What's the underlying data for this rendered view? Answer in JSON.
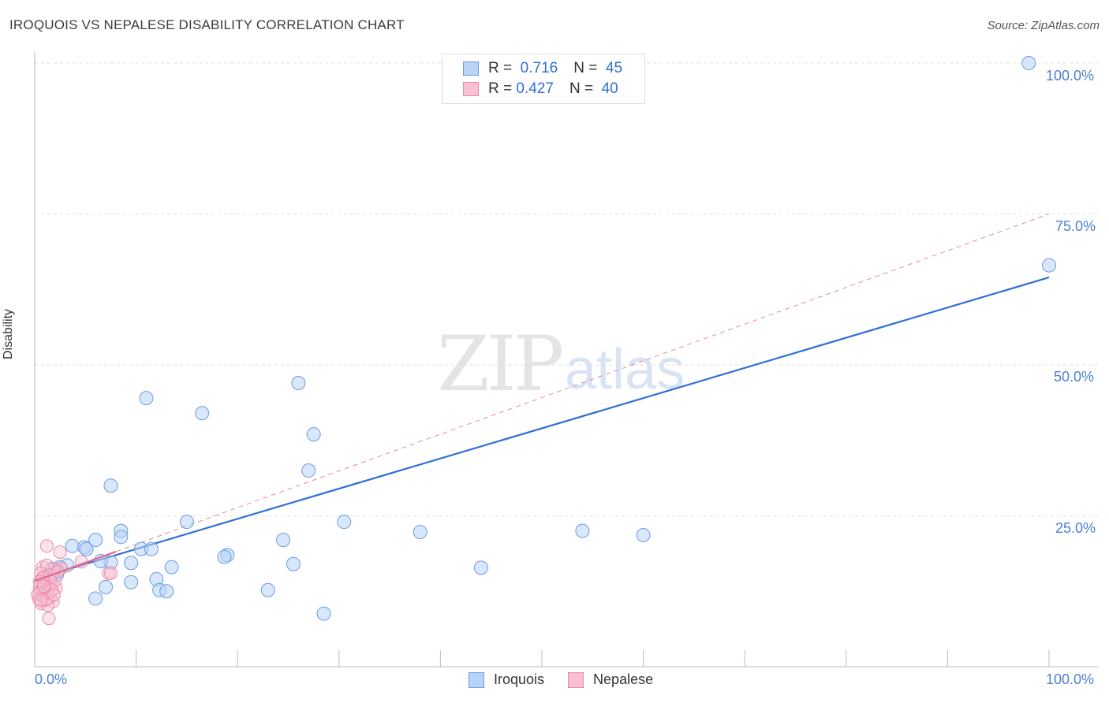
{
  "title": "IROQUOIS VS NEPALESE DISABILITY CORRELATION CHART",
  "source": "Source: ZipAtlas.com",
  "watermark": {
    "zip": "ZIP",
    "atlas": "atlas"
  },
  "colors": {
    "blue": "#2f6fd6",
    "blue_fill": "#b8d3f5",
    "pink": "#e8648e",
    "pink_fill": "#f7c1d2"
  },
  "legend": {
    "r_label": "R =",
    "n_label": "N =",
    "series": [
      {
        "name": "Iroquois",
        "r": "0.716",
        "n": "45"
      },
      {
        "name": "Nepalese",
        "r": "0.427",
        "n": "40"
      }
    ]
  },
  "chart_data": {
    "type": "scatter",
    "title": "IROQUOIS VS NEPALESE DISABILITY CORRELATION CHART",
    "xlabel": "",
    "ylabel": "Disability",
    "xlim": [
      0,
      100
    ],
    "ylim": [
      0,
      105
    ],
    "x_tick_labels": [
      "0.0%",
      "100.0%"
    ],
    "y_tick_labels": [
      "100.0%",
      "75.0%",
      "50.0%",
      "25.0%"
    ],
    "y_ticks": [
      100,
      75,
      50,
      25
    ],
    "grid": true,
    "series": [
      {
        "name": "Iroquois",
        "points": [
          [
            98,
            100
          ],
          [
            100,
            66.5
          ],
          [
            11,
            44.5
          ],
          [
            16.5,
            42
          ],
          [
            26,
            47
          ],
          [
            27.5,
            38.5
          ],
          [
            27,
            32.5
          ],
          [
            7.5,
            30
          ],
          [
            15,
            24
          ],
          [
            8.5,
            22.5
          ],
          [
            30.5,
            24
          ],
          [
            38,
            22.3
          ],
          [
            54,
            22.5
          ],
          [
            60,
            21.8
          ],
          [
            8.5,
            21.5
          ],
          [
            6,
            21
          ],
          [
            3.7,
            20
          ],
          [
            4.9,
            19.8
          ],
          [
            5.1,
            19.5
          ],
          [
            10.5,
            19.5
          ],
          [
            11.5,
            19.5
          ],
          [
            19,
            18.5
          ],
          [
            18.7,
            18.2
          ],
          [
            24.5,
            21
          ],
          [
            25.5,
            17
          ],
          [
            7.5,
            17.3
          ],
          [
            9.5,
            17.2
          ],
          [
            13.5,
            16.5
          ],
          [
            44,
            16.4
          ],
          [
            2.5,
            16.5
          ],
          [
            3.2,
            16.8
          ],
          [
            12,
            14.5
          ],
          [
            9.5,
            14
          ],
          [
            7,
            13.2
          ],
          [
            12.3,
            12.7
          ],
          [
            13,
            12.5
          ],
          [
            23,
            12.7
          ],
          [
            6,
            11.3
          ],
          [
            28.5,
            8.8
          ],
          [
            2.2,
            15.3
          ],
          [
            1.8,
            15.5
          ],
          [
            1.2,
            15
          ],
          [
            1.5,
            14.5
          ],
          [
            6.5,
            17.5
          ],
          [
            1.7,
            16.2
          ]
        ],
        "trend": [
          [
            0,
            14.5
          ],
          [
            100,
            64.5
          ]
        ]
      },
      {
        "name": "Nepalese",
        "points": [
          [
            1.2,
            20
          ],
          [
            2.5,
            19
          ],
          [
            7.3,
            15.5
          ],
          [
            7.5,
            15.5
          ],
          [
            4.6,
            17.4
          ],
          [
            2.6,
            16.3
          ],
          [
            1.9,
            16.2
          ],
          [
            0.8,
            16.5
          ],
          [
            1.2,
            16.8
          ],
          [
            0.6,
            15.5
          ],
          [
            0.7,
            14.6
          ],
          [
            1.1,
            14.2
          ],
          [
            0.9,
            13.8
          ],
          [
            1.6,
            13.5
          ],
          [
            0.5,
            13.2
          ],
          [
            1.4,
            13
          ],
          [
            2.1,
            13
          ],
          [
            0.7,
            12.8
          ],
          [
            1.1,
            12.5
          ],
          [
            0.5,
            12.3
          ],
          [
            1.3,
            12.2
          ],
          [
            0.8,
            11.8
          ],
          [
            1.5,
            11.5
          ],
          [
            0.4,
            11.3
          ],
          [
            1,
            11
          ],
          [
            1.8,
            10.8
          ],
          [
            0.6,
            10.5
          ],
          [
            1.3,
            10.2
          ],
          [
            0.9,
            14.8
          ],
          [
            1.5,
            15.2
          ],
          [
            2,
            14.3
          ],
          [
            0.3,
            12
          ],
          [
            1.7,
            12.7
          ],
          [
            1.2,
            11.2
          ],
          [
            0.5,
            14.1
          ],
          [
            1.4,
            8
          ],
          [
            2.3,
            15.8
          ],
          [
            0.9,
            13.3
          ],
          [
            1.9,
            11.9
          ],
          [
            0.6,
            11
          ]
        ],
        "trend": [
          [
            0,
            14.2
          ],
          [
            100,
            75
          ]
        ]
      }
    ]
  }
}
